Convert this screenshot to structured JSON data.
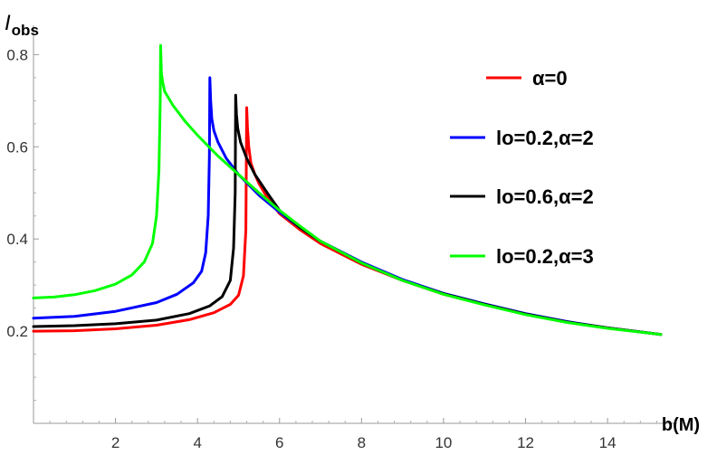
{
  "chart_data": {
    "type": "line",
    "xlabel": "b(M)",
    "ylabel_main": "I",
    "ylabel_sub": "obs",
    "xlim": [
      0,
      15.3
    ],
    "ylim": [
      0,
      0.84
    ],
    "x_ticks": [
      2,
      4,
      6,
      8,
      10,
      12,
      14
    ],
    "x_tick_labels": [
      "2",
      "4",
      "6",
      "8",
      "10",
      "12",
      "14"
    ],
    "y_ticks": [
      0.2,
      0.4,
      0.6,
      0.8
    ],
    "y_tick_labels": [
      "0.2",
      "0.4",
      "0.6",
      "0.8"
    ],
    "grid": false,
    "legend_position": "right",
    "series": [
      {
        "name": "α=0",
        "color": "#ff0000",
        "x": [
          0,
          1,
          2,
          3,
          3.8,
          4.4,
          4.8,
          5.0,
          5.12,
          5.18,
          5.2,
          5.22,
          5.25,
          5.3,
          5.4,
          5.5,
          5.7,
          6.0,
          6.5,
          7,
          8,
          9,
          10,
          11,
          12,
          13,
          14,
          15.3
        ],
        "y": [
          0.2,
          0.201,
          0.205,
          0.213,
          0.225,
          0.24,
          0.258,
          0.278,
          0.32,
          0.42,
          0.685,
          0.64,
          0.6,
          0.565,
          0.54,
          0.52,
          0.49,
          0.455,
          0.42,
          0.39,
          0.345,
          0.31,
          0.28,
          0.258,
          0.237,
          0.22,
          0.207,
          0.193
        ]
      },
      {
        "name": "lo=0.2,α=2",
        "color": "#0000ff",
        "x": [
          0,
          1,
          2,
          3,
          3.5,
          3.9,
          4.1,
          4.2,
          4.26,
          4.29,
          4.3,
          4.32,
          4.35,
          4.4,
          4.5,
          4.7,
          5,
          5.5,
          6,
          6.5,
          7,
          8,
          9,
          10,
          11,
          12,
          13,
          14,
          15.3
        ],
        "y": [
          0.228,
          0.232,
          0.243,
          0.262,
          0.28,
          0.305,
          0.33,
          0.37,
          0.45,
          0.58,
          0.75,
          0.7,
          0.66,
          0.635,
          0.61,
          0.575,
          0.54,
          0.495,
          0.458,
          0.425,
          0.395,
          0.35,
          0.312,
          0.282,
          0.259,
          0.238,
          0.221,
          0.207,
          0.193
        ]
      },
      {
        "name": "lo=0.6,α=2",
        "color": "#000000",
        "x": [
          0,
          1,
          2,
          3,
          3.8,
          4.3,
          4.6,
          4.8,
          4.88,
          4.92,
          4.93,
          4.95,
          4.98,
          5.05,
          5.2,
          5.4,
          5.7,
          6.0,
          6.5,
          7,
          8,
          9,
          10,
          11,
          12,
          13,
          14,
          15.3
        ],
        "y": [
          0.21,
          0.212,
          0.216,
          0.224,
          0.238,
          0.255,
          0.275,
          0.31,
          0.38,
          0.5,
          0.712,
          0.67,
          0.64,
          0.61,
          0.575,
          0.54,
          0.5,
          0.462,
          0.425,
          0.395,
          0.348,
          0.31,
          0.281,
          0.258,
          0.237,
          0.22,
          0.207,
          0.193
        ]
      },
      {
        "name": "lo=0.2,α=3",
        "color": "#00ff00",
        "x": [
          0,
          0.5,
          1,
          1.5,
          2,
          2.4,
          2.7,
          2.9,
          3.0,
          3.06,
          3.09,
          3.1,
          3.12,
          3.15,
          3.2,
          3.4,
          3.7,
          4,
          4.5,
          5,
          5.5,
          6,
          6.5,
          7,
          8,
          9,
          10,
          11,
          12,
          13,
          14,
          15.3
        ],
        "y": [
          0.272,
          0.274,
          0.279,
          0.288,
          0.302,
          0.322,
          0.35,
          0.39,
          0.45,
          0.55,
          0.7,
          0.82,
          0.76,
          0.74,
          0.72,
          0.69,
          0.655,
          0.625,
          0.58,
          0.54,
          0.5,
          0.462,
          0.428,
          0.395,
          0.348,
          0.31,
          0.28,
          0.257,
          0.236,
          0.219,
          0.206,
          0.193
        ]
      }
    ]
  }
}
